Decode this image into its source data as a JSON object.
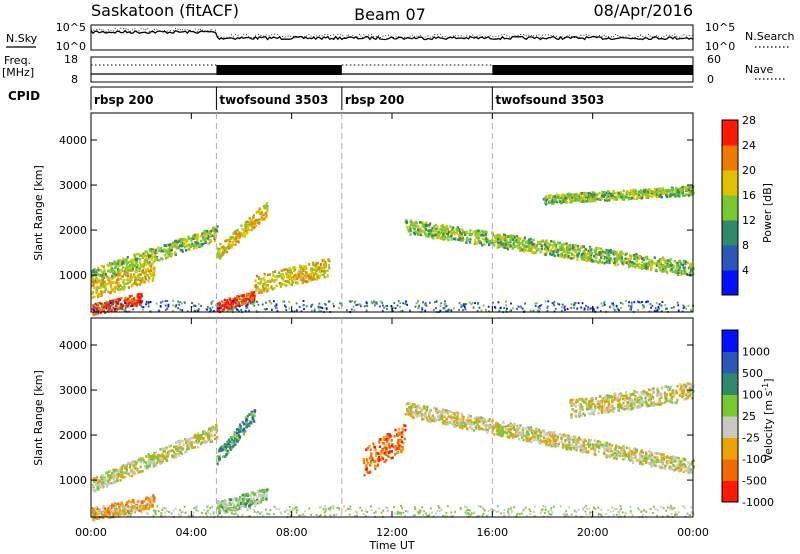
{
  "header": {
    "station": "Saskatoon (fitACF)",
    "beam": "Beam 07",
    "date": "08/Apr/2016"
  },
  "noise_panel": {
    "left_label": "N.Sky",
    "right_label": "N.Search",
    "left_ticks": [
      "10^5",
      "10^0"
    ],
    "right_ticks": [
      "10^5",
      "10^0"
    ]
  },
  "freq_panel": {
    "left_label_top": "Freq.",
    "left_label_bottom": "[MHz]",
    "right_label": "Nave",
    "left_ticks": [
      "18",
      "8"
    ],
    "right_ticks": [
      "60",
      "0"
    ]
  },
  "cpid": {
    "label": "CPID",
    "segments": [
      {
        "name": "rbsp 200",
        "start": 0,
        "end": 5
      },
      {
        "name": "twofsound 3503",
        "start": 5,
        "end": 10
      },
      {
        "name": "rbsp 200",
        "start": 10,
        "end": 16
      },
      {
        "name": "twofsound 3503",
        "start": 16,
        "end": 24
      }
    ]
  },
  "axes": {
    "xlabel": "Time UT",
    "ylabel": "Slant Range [km]",
    "x_ticks": [
      "00:00",
      "04:00",
      "08:00",
      "12:00",
      "16:00",
      "20:00",
      "00:00"
    ],
    "x_tick_hours": [
      0,
      4,
      8,
      12,
      16,
      20,
      24
    ],
    "y_ticks": [
      "1000",
      "2000",
      "3000",
      "4000"
    ],
    "y_tick_values": [
      1000,
      2000,
      3000,
      4000
    ]
  },
  "chart_data": [
    {
      "type": "heatmap",
      "quantity": "Power",
      "colorbar_label": "Power [dB]",
      "colorbar_ticks": [
        "4",
        "8",
        "12",
        "16",
        "20",
        "24",
        "28"
      ],
      "colorbar_colors": [
        "#0010ff",
        "#2a58b8",
        "#2e8a6a",
        "#78c832",
        "#e2c000",
        "#f07a00",
        "#ff1800"
      ],
      "xlim": [
        0,
        24
      ],
      "ylim": [
        180,
        4600
      ],
      "xlabel": "Time UT",
      "ylabel": "Slant Range [km]",
      "cpid_boundaries": [
        5,
        10,
        16
      ],
      "echo_bands": [
        {
          "t0": 0.0,
          "t1": 5.0,
          "r0": 1000,
          "r1": 1950,
          "level": 3
        },
        {
          "t0": 0.0,
          "t1": 2.5,
          "r0": 700,
          "r1": 1100,
          "level": 4
        },
        {
          "t0": 0.0,
          "t1": 2.0,
          "r0": 250,
          "r1": 500,
          "level": 6
        },
        {
          "t0": 5.0,
          "t1": 6.5,
          "r0": 300,
          "r1": 550,
          "level": 6
        },
        {
          "t0": 5.0,
          "t1": 7.0,
          "r0": 1500,
          "r1": 2500,
          "level": 4
        },
        {
          "t0": 6.5,
          "t1": 9.5,
          "r0": 800,
          "r1": 1200,
          "level": 4
        },
        {
          "t0": 12.5,
          "t1": 24.0,
          "r0": 2100,
          "r1": 1150,
          "level": 3
        },
        {
          "t0": 18.0,
          "t1": 24.0,
          "r0": 2700,
          "r1": 2900,
          "level": 3
        }
      ]
    },
    {
      "type": "heatmap",
      "quantity": "Velocity",
      "colorbar_label": "Velocity [m s^-1]",
      "colorbar_ticks": [
        "1000",
        "500",
        "100",
        "25",
        "-25",
        "-100",
        "-500",
        "-1000"
      ],
      "colorbar_colors": [
        "#0010ff",
        "#2a58b8",
        "#2e8a6a",
        "#78c832",
        "#c8c8c0",
        "#f0a000",
        "#f06a00",
        "#ff1800"
      ],
      "xlim": [
        0,
        24
      ],
      "ylim": [
        180,
        4600
      ],
      "xlabel": "Time UT",
      "ylabel": "Slant Range [km]",
      "cpid_boundaries": [
        5,
        10,
        16
      ],
      "echo_bands": [
        {
          "t0": 0.0,
          "t1": 5.0,
          "r0": 900,
          "r1": 2100,
          "level": 4
        },
        {
          "t0": 0.0,
          "t1": 2.5,
          "r0": 250,
          "r1": 550,
          "level": 5
        },
        {
          "t0": 5.0,
          "t1": 7.0,
          "r0": 400,
          "r1": 700,
          "level": 3
        },
        {
          "t0": 5.0,
          "t1": 6.5,
          "r0": 1500,
          "r1": 2500,
          "level": 2
        },
        {
          "t0": 10.8,
          "t1": 12.5,
          "r0": 1400,
          "r1": 2000,
          "level": 6
        },
        {
          "t0": 12.5,
          "t1": 24.0,
          "r0": 2600,
          "r1": 1300,
          "level": 4
        },
        {
          "t0": 19.0,
          "t1": 24.0,
          "r0": 2600,
          "r1": 3000,
          "level": 4
        }
      ]
    }
  ]
}
